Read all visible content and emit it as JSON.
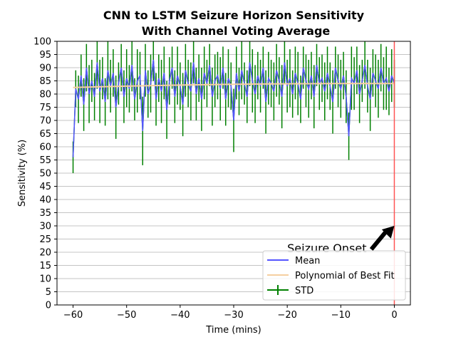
{
  "chart_data": {
    "type": "line",
    "title": [
      "CNN to LSTM Seizure Horizon Sensitivity",
      "With Channel Voting Average"
    ],
    "xlabel": "Time (mins)",
    "ylabel": "Sensitivity (%)",
    "xlim": [
      -63,
      3
    ],
    "ylim": [
      0,
      100
    ],
    "xticks": [
      -60,
      -50,
      -40,
      -30,
      -20,
      -10,
      0
    ],
    "xtick_labels": [
      "−60",
      "−50",
      "−40",
      "−30",
      "−20",
      "−10",
      "0"
    ],
    "yticks": [
      0,
      5,
      10,
      15,
      20,
      25,
      30,
      35,
      40,
      45,
      50,
      55,
      60,
      65,
      70,
      75,
      80,
      85,
      90,
      95,
      100
    ],
    "grid": "horizontal",
    "legend_position": "lower-right",
    "colors": {
      "mean": "#5555ff",
      "fit": "#f5cfa0",
      "std": "#008000",
      "onset": "#ff5555"
    },
    "series": [
      {
        "name": "Mean",
        "x": [
          -60,
          -59.5,
          -59,
          -58.5,
          -58,
          -57.5,
          -57,
          -56.5,
          -56,
          -55.5,
          -55,
          -54.5,
          -54,
          -53.5,
          -53,
          -52.5,
          -52,
          -51.5,
          -51,
          -50.5,
          -50,
          -49.5,
          -49,
          -48.5,
          -48,
          -47.5,
          -47,
          -46.5,
          -46,
          -45.5,
          -45,
          -44.5,
          -44,
          -43.5,
          -43,
          -42.5,
          -42,
          -41.5,
          -41,
          -40.5,
          -40,
          -39.5,
          -39,
          -38.5,
          -38,
          -37.5,
          -37,
          -36.5,
          -36,
          -35.5,
          -35,
          -34.5,
          -34,
          -33.5,
          -33,
          -32.5,
          -32,
          -31.5,
          -31,
          -30.5,
          -30,
          -29.5,
          -29,
          -28.5,
          -28,
          -27.5,
          -27,
          -26.5,
          -26,
          -25.5,
          -25,
          -24.5,
          -24,
          -23.5,
          -23,
          -22.5,
          -22,
          -21.5,
          -21,
          -20.5,
          -20,
          -19.5,
          -19,
          -18.5,
          -18,
          -17.5,
          -17,
          -16.5,
          -16,
          -15.5,
          -15,
          -14.5,
          -14,
          -13.5,
          -13,
          -12.5,
          -12,
          -11.5,
          -11,
          -10.5,
          -10,
          -9.5,
          -9,
          -8.5,
          -8,
          -7.5,
          -7,
          -6.5,
          -6,
          -5.5,
          -5,
          -4.5,
          -4,
          -3.5,
          -3,
          -2.5,
          -2,
          -1.5,
          -1,
          -0.5,
          0
        ],
        "values": [
          56,
          82,
          78,
          87,
          76,
          90,
          80,
          85,
          79,
          92,
          81,
          86,
          77,
          89,
          83,
          88,
          75,
          84,
          90,
          79,
          86,
          82,
          91,
          78,
          85,
          87,
          66,
          89,
          80,
          84,
          93,
          78,
          86,
          81,
          88,
          74,
          85,
          90,
          79,
          87,
          83,
          76,
          89,
          84,
          81,
          92,
          80,
          86,
          78,
          88,
          84,
          91,
          79,
          85,
          87,
          82,
          90,
          78,
          86,
          83,
          70,
          88,
          81,
          89,
          84,
          79,
          92,
          85,
          80,
          87,
          83,
          90,
          77,
          86,
          84,
          81,
          89,
          85,
          79,
          92,
          83,
          86,
          80,
          88,
          84,
          78,
          90,
          85,
          82,
          87,
          79,
          91,
          84,
          86,
          81,
          88,
          83,
          77,
          90,
          85,
          82,
          87,
          79,
          64,
          86,
          84,
          89,
          80,
          85,
          91,
          83,
          78,
          88,
          85,
          82,
          90,
          84,
          86,
          81,
          87,
          84
        ]
      },
      {
        "name": "Polynomial of Best Fit",
        "x": [
          -60,
          -50,
          -40,
          -30,
          -20,
          -10,
          0
        ],
        "values": [
          82.5,
          83.0,
          83.4,
          83.7,
          83.9,
          84.0,
          84.0
        ]
      },
      {
        "name": "STD",
        "x": [
          -60,
          -59.5,
          -59,
          -58.5,
          -58,
          -57.5,
          -57,
          -56.5,
          -56,
          -55.5,
          -55,
          -54.5,
          -54,
          -53.5,
          -53,
          -52.5,
          -52,
          -51.5,
          -51,
          -50.5,
          -50,
          -49.5,
          -49,
          -48.5,
          -48,
          -47.5,
          -47,
          -46.5,
          -46,
          -45.5,
          -45,
          -44.5,
          -44,
          -43.5,
          -43,
          -42.5,
          -42,
          -41.5,
          -41,
          -40.5,
          -40,
          -39.5,
          -39,
          -38.5,
          -38,
          -37.5,
          -37,
          -36.5,
          -36,
          -35.5,
          -35,
          -34.5,
          -34,
          -33.5,
          -33,
          -32.5,
          -32,
          -31.5,
          -31,
          -30.5,
          -30,
          -29.5,
          -29,
          -28.5,
          -28,
          -27.5,
          -27,
          -26.5,
          -26,
          -25.5,
          -25,
          -24.5,
          -24,
          -23.5,
          -23,
          -22.5,
          -22,
          -21.5,
          -21,
          -20.5,
          -20,
          -19.5,
          -19,
          -18.5,
          -18,
          -17.5,
          -17,
          -16.5,
          -16,
          -15.5,
          -15,
          -14.5,
          -14,
          -13.5,
          -13,
          -12.5,
          -12,
          -11.5,
          -11,
          -10.5,
          -10,
          -9.5,
          -9,
          -8.5,
          -8,
          -7.5,
          -7,
          -6.5,
          -6,
          -5.5,
          -5,
          -4.5,
          -4,
          -3.5,
          -3,
          -2.5,
          -2,
          -1.5,
          -1,
          -0.5,
          0
        ],
        "std": [
          6,
          7,
          9,
          8,
          10,
          9,
          11,
          8,
          9,
          10,
          12,
          8,
          9,
          11,
          10,
          9,
          12,
          8,
          9,
          10,
          11,
          9,
          10,
          8,
          12,
          9,
          13,
          10,
          9,
          11,
          8,
          10,
          9,
          12,
          10,
          11,
          9,
          8,
          10,
          11,
          9,
          12,
          10,
          9,
          11,
          8,
          10,
          9,
          12,
          10,
          9,
          8,
          11,
          10,
          9,
          12,
          8,
          10,
          11,
          9,
          12,
          10,
          9,
          11,
          8,
          10,
          9,
          12,
          11,
          9,
          10,
          8,
          12,
          10,
          9,
          11,
          10,
          9,
          12,
          8,
          10,
          11,
          9,
          10,
          12,
          9,
          8,
          10,
          11,
          9,
          12,
          8,
          10,
          9,
          11,
          10,
          9,
          12,
          8,
          10,
          11,
          9,
          10,
          9,
          12,
          10,
          9,
          11,
          8,
          9,
          10,
          12,
          9,
          10,
          11,
          9,
          10,
          12,
          9,
          10,
          9
        ]
      }
    ],
    "vline": {
      "x": 0
    },
    "annotation": {
      "text": "Seizure Onset",
      "xy": [
        0,
        30
      ],
      "xytext": [
        -20,
        20
      ]
    }
  }
}
